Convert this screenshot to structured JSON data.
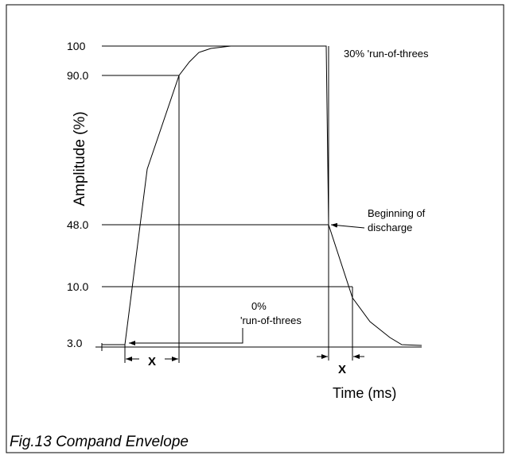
{
  "figure": {
    "caption": "Fig.13 Compand Envelope",
    "y_axis_label": "Amplitude (%)",
    "x_axis_label": "Time (ms)",
    "y_labels": [
      "100",
      "90.0",
      "48.0",
      "10.0",
      "3.0"
    ],
    "annotations": {
      "top_right": "30% 'run-of-threes",
      "discharge": [
        "Beginning of",
        "discharge"
      ],
      "bottom": [
        "0%",
        "'run-of-threes"
      ],
      "interval_left": "X",
      "interval_right": "X"
    }
  }
}
